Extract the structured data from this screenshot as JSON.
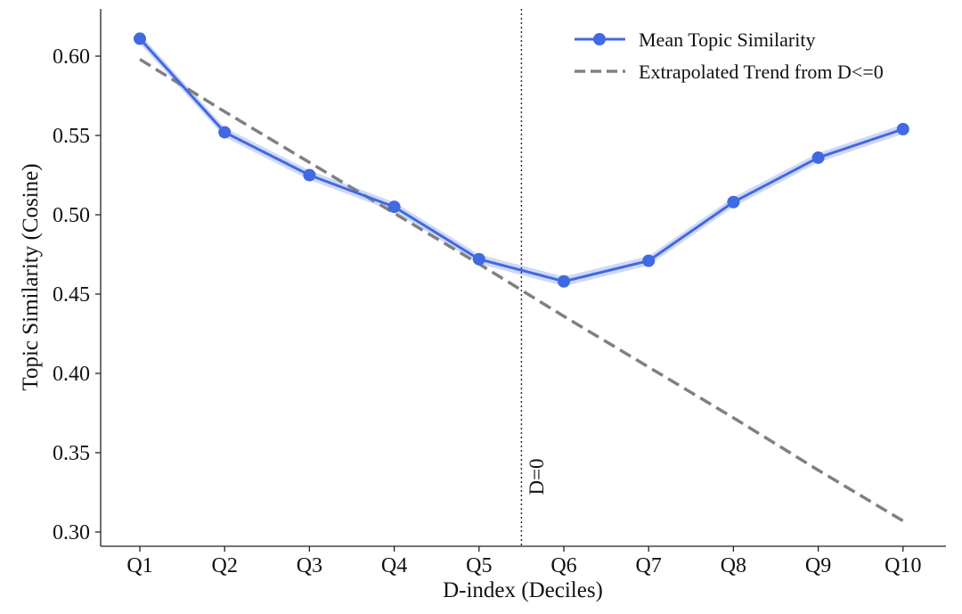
{
  "chart_data": {
    "type": "line",
    "title": "",
    "xlabel": "D-index (Deciles)",
    "ylabel": "Topic Similarity (Cosine)",
    "categories": [
      "Q1",
      "Q2",
      "Q3",
      "Q4",
      "Q5",
      "Q6",
      "Q7",
      "Q8",
      "Q9",
      "Q10"
    ],
    "ylim": [
      0.291,
      0.63
    ],
    "yticks": [
      "0.30",
      "0.35",
      "0.40",
      "0.45",
      "0.50",
      "0.55",
      "0.60"
    ],
    "grid": false,
    "legend_position": "top-right",
    "series": [
      {
        "name": "Mean Topic Similarity",
        "style": "solid-markers",
        "color": "#4169E1",
        "values": [
          0.611,
          0.552,
          0.525,
          0.505,
          0.472,
          0.458,
          0.471,
          0.508,
          0.536,
          0.554
        ],
        "ci_halfwidth": 0.003
      },
      {
        "name": "Extrapolated Trend from D<=0",
        "style": "dashed",
        "color": "#808080",
        "values": [
          0.598,
          0.565,
          0.533,
          0.501,
          0.469,
          0.436,
          0.404,
          0.372,
          0.339,
          0.307
        ]
      }
    ],
    "annotations": [
      {
        "text": "D=0",
        "x_position": 5.5,
        "style": "dotted-vertical-line"
      }
    ]
  }
}
